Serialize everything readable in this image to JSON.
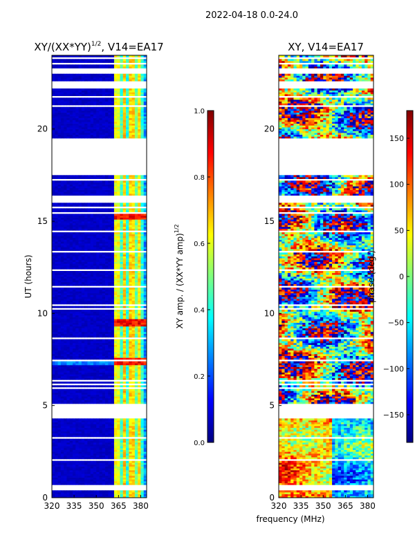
{
  "figure": {
    "suptitle": "2022-04-18 0.0-24.0",
    "xlabel": "frequency (MHz)"
  },
  "colors": {
    "jet": [
      "#00007f",
      "#0000ff",
      "#007fff",
      "#00ffff",
      "#7fff7f",
      "#ffff00",
      "#ff7f00",
      "#ff0000",
      "#7f0000"
    ],
    "blank": "#ffffff"
  },
  "chart_data": [
    {
      "type": "heatmap",
      "title": "XY/(XX*YY)",
      "title_superscript": "1/2",
      "title_suffix": ", V14=EA17",
      "xlabel": "",
      "ylabel": "UT (hours)",
      "xlim": [
        320,
        384
      ],
      "ylim": [
        0,
        24
      ],
      "xticks": [
        "320",
        "335",
        "350",
        "365",
        "380"
      ],
      "yticks": [
        "0",
        "5",
        "10",
        "15",
        "20"
      ],
      "colorbar": {
        "label": "XY amp. / (XX*YY amp)",
        "label_superscript": "1/2",
        "range": [
          0.0,
          1.0
        ],
        "ticks": [
          "0.0",
          "0.2",
          "0.4",
          "0.6",
          "0.8",
          "1.0"
        ]
      },
      "band_channels_MHz": [
        364,
        366,
        369,
        371,
        374,
        376,
        379,
        381
      ],
      "band_amplitude": [
        0.55,
        0.38,
        0.62,
        0.35,
        0.6,
        0.42,
        0.58,
        0.36
      ],
      "spike_hours": [
        15.2,
        9.4,
        7.3
      ],
      "flagged_hours": [
        [
          0.35,
          0.6
        ],
        [
          4.3,
          5.0
        ],
        [
          17.4,
          19.3
        ],
        [
          22.2,
          22.6
        ],
        [
          23.0,
          23.25
        ]
      ]
    },
    {
      "type": "heatmap",
      "title": "XY, V14=EA17",
      "xlabel": "",
      "ylabel": "",
      "xlim": [
        320,
        384
      ],
      "ylim": [
        0,
        24
      ],
      "xticks": [
        "320",
        "335",
        "350",
        "365",
        "380"
      ],
      "yticks": [
        "0",
        "5",
        "10",
        "15",
        "20"
      ],
      "colorbar": {
        "label": "phase (deg.)",
        "range": [
          -180,
          180
        ],
        "ticks": [
          "−150",
          "−100",
          "−50",
          "0",
          "50",
          "100",
          "150"
        ]
      },
      "flagged_hours": [
        [
          0.35,
          0.6
        ],
        [
          4.3,
          5.0
        ],
        [
          17.4,
          19.3
        ],
        [
          22.2,
          22.6
        ],
        [
          23.0,
          23.25
        ]
      ]
    }
  ]
}
